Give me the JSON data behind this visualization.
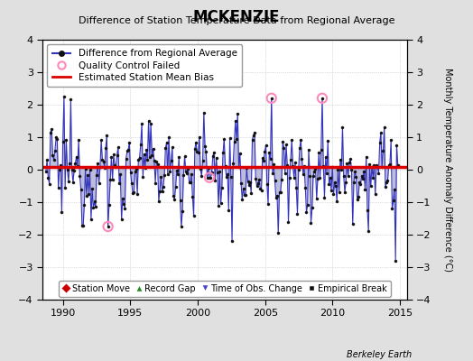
{
  "title": "MCKENZIE",
  "subtitle": "Difference of Station Temperature Data from Regional Average",
  "ylabel_right": "Monthly Temperature Anomaly Difference (°C)",
  "xlim": [
    1988.5,
    2015.5
  ],
  "ylim": [
    -4,
    4
  ],
  "yticks": [
    -4,
    -3,
    -2,
    -1,
    0,
    1,
    2,
    3,
    4
  ],
  "xticks": [
    1990,
    1995,
    2000,
    2005,
    2010,
    2015
  ],
  "mean_bias": 0.07,
  "background_color": "#e0e0e0",
  "plot_background": "#ffffff",
  "line_color": "#3333bb",
  "fill_color": "#9999cc",
  "bias_color": "#dd0000",
  "marker_color": "#111111",
  "qc_color": "#ff88bb",
  "footer": "Berkeley Earth",
  "legend1_items": [
    "Difference from Regional Average",
    "Quality Control Failed",
    "Estimated Station Mean Bias"
  ],
  "legend2_items": [
    "Station Move",
    "Record Gap",
    "Time of Obs. Change",
    "Empirical Break"
  ]
}
